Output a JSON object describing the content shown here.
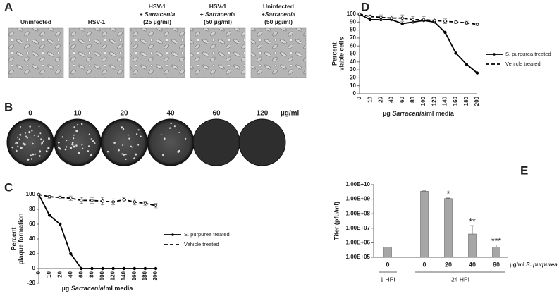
{
  "panels": {
    "a": {
      "label": "A",
      "captions": [
        [
          [
            "Uninfected"
          ]
        ],
        [
          [
            "HSV-1"
          ]
        ],
        [
          [
            "HSV-1"
          ],
          [
            "+ ",
            {
              "text": "Sarracenia",
              "italic": true
            }
          ],
          [
            "(25 µg/ml)"
          ]
        ],
        [
          [
            "HSV-1"
          ],
          [
            "+ ",
            {
              "text": "Sarracenia",
              "italic": true
            }
          ],
          [
            "(50 µg/ml)"
          ]
        ],
        [
          [
            "Uninfected"
          ],
          [
            "+",
            {
              "text": "Sarracenia",
              "italic": true
            }
          ],
          [
            "(50 µg/ml)"
          ]
        ]
      ]
    },
    "b": {
      "label": "B",
      "doses": [
        "0",
        "10",
        "20",
        "40",
        "60",
        "120"
      ],
      "unit": "µg/ml"
    }
  },
  "chart_data": [
    {
      "type": "line",
      "panel_label": "C",
      "categories": [
        "0",
        "10",
        "20",
        "40",
        "60",
        "80",
        "100",
        "120",
        "140",
        "160",
        "180",
        "200"
      ],
      "y_label": [
        "Percent",
        "plaque formation"
      ],
      "x_label": [
        "µg ",
        {
          "text": "Sarracenia",
          "italic": true
        },
        "/ml media"
      ],
      "ylim": [
        -20,
        100
      ],
      "yticks": [
        -20,
        0,
        20,
        40,
        60,
        80,
        100
      ],
      "legend": "right",
      "series": [
        {
          "name": "S. purpurea treated",
          "color": "#000000",
          "line_style": "solid",
          "marker": "filled",
          "values": [
            100,
            72,
            60,
            20,
            0,
            0,
            0,
            0,
            0,
            0,
            0,
            0
          ]
        },
        {
          "name": "Vehicle treated",
          "color": "#000000",
          "line_style": "dashed",
          "marker": "open",
          "values": [
            100,
            97,
            96,
            95,
            92,
            92,
            91,
            90,
            93,
            90,
            88,
            85
          ],
          "errors": [
            1,
            2,
            2,
            3,
            4,
            4,
            5,
            4,
            3,
            4,
            3,
            3
          ]
        }
      ]
    },
    {
      "type": "line",
      "panel_label": "D",
      "categories": [
        "0",
        "10",
        "20",
        "40",
        "60",
        "80",
        "100",
        "120",
        "140",
        "160",
        "180",
        "200"
      ],
      "y_label": [
        "Percent",
        "viable cells"
      ],
      "x_label": [
        "µg ",
        {
          "text": "Sarracenia",
          "italic": true
        },
        "/ml media"
      ],
      "ylim": [
        0,
        100
      ],
      "yticks": [
        0,
        10,
        20,
        30,
        40,
        50,
        60,
        70,
        80,
        90,
        100
      ],
      "legend": "right",
      "series": [
        {
          "name": "S. purpurea treated",
          "color": "#000000",
          "line_style": "solid",
          "marker": "filled",
          "values": [
            100,
            93,
            93,
            93,
            88,
            90,
            92,
            90,
            77,
            51,
            37,
            26
          ]
        },
        {
          "name": "Vehicle treated",
          "color": "#000000",
          "line_style": "dashed",
          "marker": "open",
          "values": [
            100,
            97,
            96,
            95,
            95,
            93,
            93,
            92,
            91,
            90,
            89,
            87
          ],
          "errors": [
            1,
            2,
            3,
            3,
            4,
            4,
            4,
            3,
            3,
            2,
            2,
            1
          ]
        }
      ]
    },
    {
      "type": "bar",
      "panel_label": "E",
      "log_scale": true,
      "categories": [
        "0",
        "0",
        "20",
        "40",
        "60"
      ],
      "groups": [
        {
          "label": "1 HPI",
          "size": 1
        },
        {
          "label": "24 HPI",
          "size": 4
        }
      ],
      "values": [
        500000,
        3500000000,
        1100000000,
        4000000,
        500000
      ],
      "errors": [
        0,
        200000000,
        100000000,
        11000000,
        200000
      ],
      "significance": [
        null,
        null,
        "*",
        "**",
        "***"
      ],
      "color": "#a6a6a6",
      "y_label": [
        "Titer (pfu/ml)"
      ],
      "x_label": [
        "µg/ml ",
        {
          "text": "S. purpurea",
          "italic": true
        }
      ],
      "ylim": [
        100000,
        10000000000
      ],
      "yticks": [
        {
          "value": 100000,
          "label": "1.00E+05"
        },
        {
          "value": 1000000,
          "label": "1.00E+06"
        },
        {
          "value": 10000000,
          "label": "1.00E+07"
        },
        {
          "value": 100000000,
          "label": "1.00E+08"
        },
        {
          "value": 1000000000,
          "label": "1.00E+09"
        },
        {
          "value": 10000000000,
          "label": "1.00E+10"
        }
      ]
    }
  ]
}
